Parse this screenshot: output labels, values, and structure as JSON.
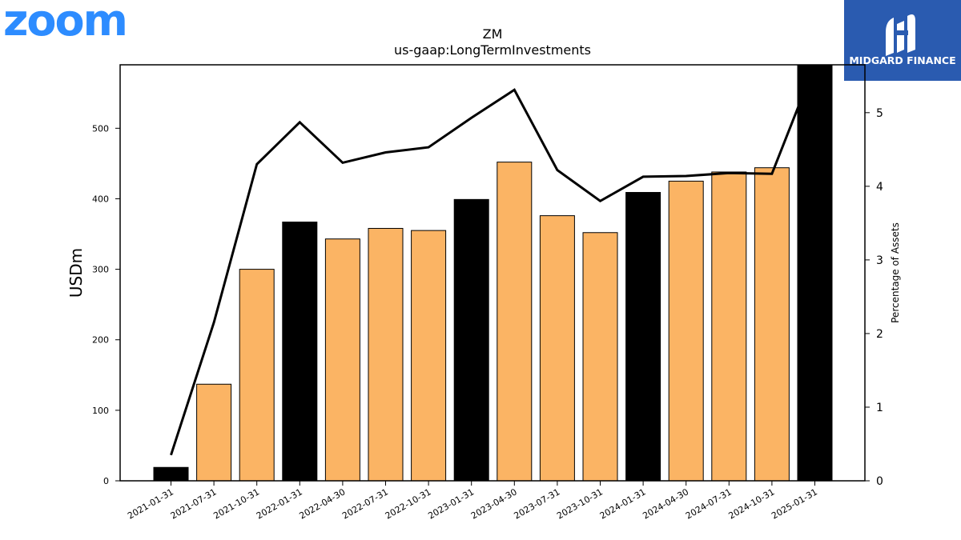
{
  "logo": {
    "text": "zoom",
    "color": "#2D8CFF"
  },
  "badge": {
    "text": "MIDGARD FINANCE",
    "bg_color": "#2A5BB0",
    "fg_color": "#FFFFFF"
  },
  "chart_data": {
    "type": "bar",
    "title": "ZM",
    "subtitle": "us-gaap:LongTermInvestments",
    "ylabel": "USDm",
    "y2label": "Percentage of Assets",
    "ylim": [
      0,
      590
    ],
    "y2lim": [
      0,
      5.65
    ],
    "yticks": [
      0,
      100,
      200,
      300,
      400,
      500
    ],
    "y2ticks": [
      0,
      1,
      2,
      3,
      4,
      5
    ],
    "categories": [
      "2021-01-31",
      "2021-07-31",
      "2021-10-31",
      "2022-01-31",
      "2022-04-30",
      "2022-07-31",
      "2022-10-31",
      "2023-01-31",
      "2023-04-30",
      "2023-07-31",
      "2023-10-31",
      "2024-01-31",
      "2024-04-30",
      "2024-07-31",
      "2024-10-31",
      "2025-01-31"
    ],
    "series": [
      {
        "type": "bar",
        "axis": "left",
        "values": [
          19,
          137,
          300,
          367,
          343,
          358,
          355,
          399,
          452,
          376,
          352,
          409,
          425,
          438,
          444,
          600
        ],
        "colors": [
          "#000000",
          "#FBB464",
          "#FBB464",
          "#000000",
          "#FBB464",
          "#FBB464",
          "#FBB464",
          "#000000",
          "#FBB464",
          "#FBB464",
          "#FBB464",
          "#000000",
          "#FBB464",
          "#FBB464",
          "#FBB464",
          "#000000"
        ]
      },
      {
        "type": "line",
        "axis": "right",
        "color": "#000000",
        "values": [
          0.35,
          2.15,
          4.3,
          4.87,
          4.32,
          4.46,
          4.53,
          4.93,
          5.31,
          4.22,
          3.8,
          4.13,
          4.14,
          4.18,
          4.17,
          5.65
        ]
      }
    ],
    "grid": false,
    "legend": "none"
  }
}
